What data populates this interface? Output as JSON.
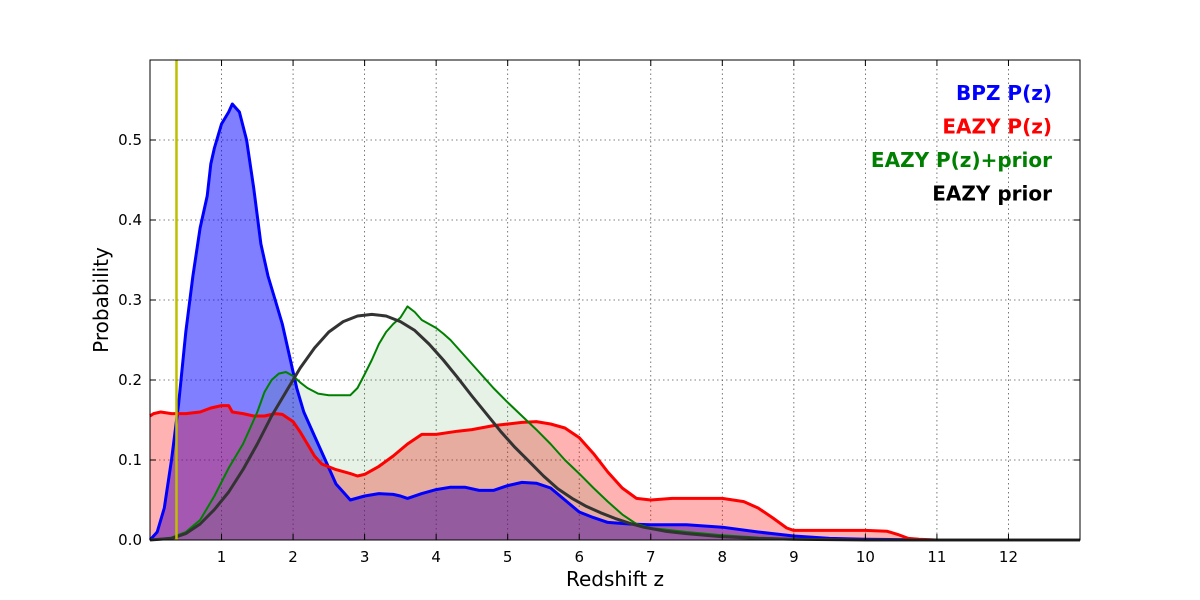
{
  "chart_data": {
    "type": "area",
    "title": "",
    "xlabel": "Redshift z",
    "ylabel": "Probability",
    "xlim": [
      0,
      13
    ],
    "ylim": [
      0,
      0.6
    ],
    "xticks": [
      1,
      2,
      3,
      4,
      5,
      6,
      7,
      8,
      9,
      10,
      11,
      12
    ],
    "yticks": [
      0.0,
      0.1,
      0.2,
      0.3,
      0.4,
      0.5
    ],
    "grid": true,
    "legend_position": "top-right",
    "vertical_line": {
      "x": 0.37,
      "color": "#bfbf00"
    },
    "series": [
      {
        "name": "BPZ P(z)",
        "color": "#0000ff",
        "fill": "#0000ff",
        "fill_opacity": 0.5,
        "line_width": 3,
        "points": [
          [
            0.0,
            0.0
          ],
          [
            0.1,
            0.01
          ],
          [
            0.2,
            0.04
          ],
          [
            0.3,
            0.1
          ],
          [
            0.4,
            0.17
          ],
          [
            0.5,
            0.26
          ],
          [
            0.6,
            0.33
          ],
          [
            0.7,
            0.39
          ],
          [
            0.8,
            0.43
          ],
          [
            0.85,
            0.47
          ],
          [
            0.9,
            0.49
          ],
          [
            1.0,
            0.52
          ],
          [
            1.1,
            0.535
          ],
          [
            1.15,
            0.545
          ],
          [
            1.25,
            0.535
          ],
          [
            1.35,
            0.5
          ],
          [
            1.45,
            0.44
          ],
          [
            1.55,
            0.37
          ],
          [
            1.65,
            0.33
          ],
          [
            1.75,
            0.3
          ],
          [
            1.85,
            0.27
          ],
          [
            1.95,
            0.23
          ],
          [
            2.05,
            0.19
          ],
          [
            2.15,
            0.16
          ],
          [
            2.3,
            0.13
          ],
          [
            2.45,
            0.1
          ],
          [
            2.6,
            0.07
          ],
          [
            2.7,
            0.06
          ],
          [
            2.8,
            0.05
          ],
          [
            3.0,
            0.055
          ],
          [
            3.2,
            0.058
          ],
          [
            3.4,
            0.057
          ],
          [
            3.5,
            0.055
          ],
          [
            3.6,
            0.052
          ],
          [
            3.8,
            0.058
          ],
          [
            4.0,
            0.063
          ],
          [
            4.2,
            0.066
          ],
          [
            4.4,
            0.066
          ],
          [
            4.6,
            0.062
          ],
          [
            4.8,
            0.062
          ],
          [
            5.0,
            0.068
          ],
          [
            5.2,
            0.072
          ],
          [
            5.4,
            0.071
          ],
          [
            5.6,
            0.065
          ],
          [
            5.8,
            0.05
          ],
          [
            6.0,
            0.035
          ],
          [
            6.2,
            0.028
          ],
          [
            6.4,
            0.022
          ],
          [
            6.7,
            0.02
          ],
          [
            7.0,
            0.019
          ],
          [
            7.5,
            0.019
          ],
          [
            8.0,
            0.016
          ],
          [
            8.5,
            0.01
          ],
          [
            9.0,
            0.005
          ],
          [
            9.5,
            0.002
          ],
          [
            10.0,
            0.001
          ],
          [
            11.0,
            0.0
          ],
          [
            13.0,
            0.0
          ]
        ]
      },
      {
        "name": "EAZY P(z)",
        "color": "#ff0000",
        "fill": "#ff0000",
        "fill_opacity": 0.3,
        "line_width": 3,
        "points": [
          [
            0.0,
            0.155
          ],
          [
            0.05,
            0.158
          ],
          [
            0.15,
            0.16
          ],
          [
            0.3,
            0.158
          ],
          [
            0.5,
            0.158
          ],
          [
            0.7,
            0.16
          ],
          [
            0.85,
            0.165
          ],
          [
            1.0,
            0.168
          ],
          [
            1.1,
            0.168
          ],
          [
            1.15,
            0.16
          ],
          [
            1.3,
            0.158
          ],
          [
            1.45,
            0.155
          ],
          [
            1.6,
            0.155
          ],
          [
            1.75,
            0.158
          ],
          [
            1.85,
            0.157
          ],
          [
            2.0,
            0.148
          ],
          [
            2.1,
            0.135
          ],
          [
            2.2,
            0.12
          ],
          [
            2.3,
            0.105
          ],
          [
            2.4,
            0.095
          ],
          [
            2.6,
            0.088
          ],
          [
            2.8,
            0.083
          ],
          [
            2.9,
            0.08
          ],
          [
            3.0,
            0.082
          ],
          [
            3.2,
            0.092
          ],
          [
            3.4,
            0.105
          ],
          [
            3.6,
            0.12
          ],
          [
            3.8,
            0.132
          ],
          [
            4.0,
            0.132
          ],
          [
            4.3,
            0.136
          ],
          [
            4.5,
            0.138
          ],
          [
            4.8,
            0.143
          ],
          [
            5.0,
            0.145
          ],
          [
            5.2,
            0.147
          ],
          [
            5.4,
            0.148
          ],
          [
            5.6,
            0.145
          ],
          [
            5.8,
            0.14
          ],
          [
            6.0,
            0.128
          ],
          [
            6.2,
            0.108
          ],
          [
            6.4,
            0.085
          ],
          [
            6.6,
            0.065
          ],
          [
            6.8,
            0.052
          ],
          [
            7.0,
            0.05
          ],
          [
            7.3,
            0.052
          ],
          [
            7.6,
            0.052
          ],
          [
            8.0,
            0.052
          ],
          [
            8.3,
            0.048
          ],
          [
            8.5,
            0.04
          ],
          [
            8.7,
            0.028
          ],
          [
            8.9,
            0.015
          ],
          [
            9.0,
            0.012
          ],
          [
            9.5,
            0.012
          ],
          [
            10.0,
            0.012
          ],
          [
            10.3,
            0.011
          ],
          [
            10.45,
            0.007
          ],
          [
            10.6,
            0.002
          ],
          [
            10.75,
            0.001
          ],
          [
            11.0,
            0.0
          ],
          [
            11.8,
            0.0
          ]
        ]
      },
      {
        "name": "EAZY P(z)+prior",
        "color": "#008000",
        "fill": "#008000",
        "fill_opacity": 0.1,
        "line_width": 2,
        "points": [
          [
            0.0,
            0.0
          ],
          [
            0.3,
            0.003
          ],
          [
            0.5,
            0.01
          ],
          [
            0.7,
            0.025
          ],
          [
            0.9,
            0.055
          ],
          [
            1.1,
            0.09
          ],
          [
            1.3,
            0.12
          ],
          [
            1.4,
            0.14
          ],
          [
            1.5,
            0.16
          ],
          [
            1.6,
            0.185
          ],
          [
            1.7,
            0.2
          ],
          [
            1.8,
            0.208
          ],
          [
            1.9,
            0.21
          ],
          [
            2.0,
            0.205
          ],
          [
            2.1,
            0.197
          ],
          [
            2.2,
            0.19
          ],
          [
            2.35,
            0.183
          ],
          [
            2.5,
            0.181
          ],
          [
            2.65,
            0.181
          ],
          [
            2.8,
            0.181
          ],
          [
            2.9,
            0.19
          ],
          [
            3.0,
            0.207
          ],
          [
            3.1,
            0.225
          ],
          [
            3.2,
            0.245
          ],
          [
            3.3,
            0.26
          ],
          [
            3.4,
            0.27
          ],
          [
            3.5,
            0.278
          ],
          [
            3.6,
            0.292
          ],
          [
            3.7,
            0.285
          ],
          [
            3.8,
            0.275
          ],
          [
            3.9,
            0.27
          ],
          [
            4.0,
            0.265
          ],
          [
            4.1,
            0.258
          ],
          [
            4.2,
            0.25
          ],
          [
            4.4,
            0.23
          ],
          [
            4.6,
            0.21
          ],
          [
            4.8,
            0.19
          ],
          [
            5.0,
            0.172
          ],
          [
            5.2,
            0.155
          ],
          [
            5.4,
            0.138
          ],
          [
            5.6,
            0.12
          ],
          [
            5.8,
            0.1
          ],
          [
            6.0,
            0.083
          ],
          [
            6.2,
            0.065
          ],
          [
            6.4,
            0.048
          ],
          [
            6.6,
            0.032
          ],
          [
            6.8,
            0.02
          ],
          [
            7.0,
            0.015
          ],
          [
            7.5,
            0.01
          ],
          [
            8.0,
            0.006
          ],
          [
            8.5,
            0.003
          ],
          [
            9.0,
            0.001
          ],
          [
            10.0,
            0.0
          ],
          [
            13.0,
            0.0
          ]
        ]
      },
      {
        "name": "EAZY prior",
        "color": "#333333",
        "fill": "none",
        "fill_opacity": 0,
        "line_width": 3,
        "points": [
          [
            0.0,
            0.0
          ],
          [
            0.3,
            0.002
          ],
          [
            0.5,
            0.008
          ],
          [
            0.7,
            0.02
          ],
          [
            0.9,
            0.038
          ],
          [
            1.1,
            0.06
          ],
          [
            1.3,
            0.088
          ],
          [
            1.5,
            0.12
          ],
          [
            1.7,
            0.155
          ],
          [
            1.9,
            0.185
          ],
          [
            2.1,
            0.215
          ],
          [
            2.3,
            0.24
          ],
          [
            2.5,
            0.26
          ],
          [
            2.7,
            0.273
          ],
          [
            2.9,
            0.28
          ],
          [
            3.1,
            0.282
          ],
          [
            3.3,
            0.28
          ],
          [
            3.5,
            0.273
          ],
          [
            3.7,
            0.262
          ],
          [
            3.9,
            0.245
          ],
          [
            4.1,
            0.225
          ],
          [
            4.3,
            0.203
          ],
          [
            4.5,
            0.18
          ],
          [
            4.7,
            0.158
          ],
          [
            4.9,
            0.136
          ],
          [
            5.1,
            0.116
          ],
          [
            5.3,
            0.098
          ],
          [
            5.5,
            0.08
          ],
          [
            5.7,
            0.064
          ],
          [
            5.9,
            0.052
          ],
          [
            6.1,
            0.042
          ],
          [
            6.3,
            0.034
          ],
          [
            6.5,
            0.027
          ],
          [
            6.7,
            0.021
          ],
          [
            6.9,
            0.016
          ],
          [
            7.2,
            0.011
          ],
          [
            7.5,
            0.008
          ],
          [
            8.0,
            0.004
          ],
          [
            8.5,
            0.002
          ],
          [
            9.0,
            0.001
          ],
          [
            10.0,
            0.0
          ],
          [
            13.0,
            0.0
          ]
        ]
      }
    ]
  }
}
